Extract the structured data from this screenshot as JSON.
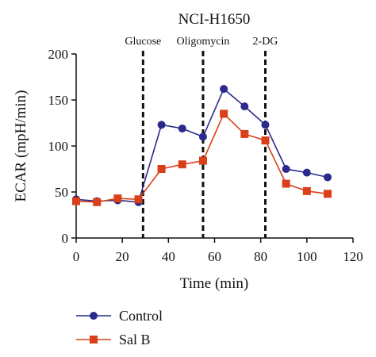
{
  "chart_data": {
    "type": "line",
    "title": "NCI-H1650",
    "xlabel": "Time (min)",
    "ylabel": "ECAR (mpH/min)",
    "xlim": [
      0,
      120
    ],
    "ylim": [
      0,
      200
    ],
    "x_ticks": [
      0,
      20,
      40,
      60,
      80,
      100,
      120
    ],
    "y_ticks": [
      0,
      50,
      100,
      150,
      200
    ],
    "grid": false,
    "legend_position": "bottom-left",
    "annotations": [
      {
        "label": "Glucose",
        "x": 29
      },
      {
        "label": "Oligomycin",
        "x": 55
      },
      {
        "label": "2-DG",
        "x": 82
      }
    ],
    "series": [
      {
        "name": "Control",
        "marker": "circle",
        "color": "#2a2a8c",
        "x": [
          0,
          9,
          18,
          27,
          37,
          46,
          55,
          64,
          73,
          82,
          91,
          100,
          109
        ],
        "values": [
          42,
          40,
          41,
          39,
          123,
          119,
          110,
          162,
          143,
          123,
          75,
          71,
          66
        ]
      },
      {
        "name": "Sal B",
        "marker": "square",
        "color": "#d9401a",
        "x": [
          0,
          9,
          18,
          27,
          37,
          46,
          55,
          64,
          73,
          82,
          91,
          100,
          109
        ],
        "values": [
          40,
          39,
          43,
          42,
          75,
          80,
          84,
          135,
          113,
          106,
          59,
          51,
          48
        ]
      }
    ]
  }
}
